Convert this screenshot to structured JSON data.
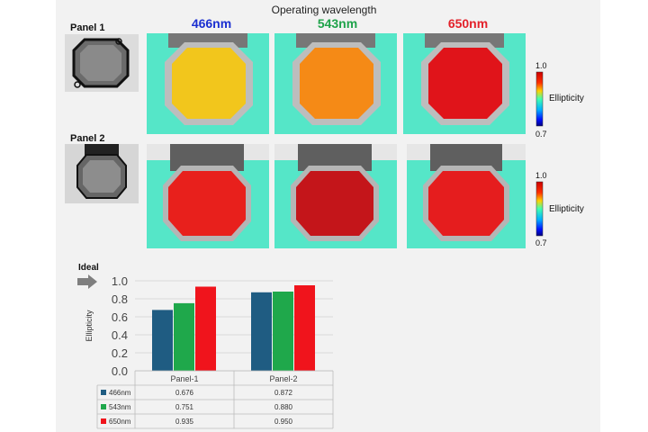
{
  "figure": {
    "title": "Operating wavelength",
    "wavelengths": [
      {
        "label": "466nm",
        "color": "#1a2fd1"
      },
      {
        "label": "543nm",
        "color": "#1fa34a"
      },
      {
        "label": "650nm",
        "color": "#e3212a"
      }
    ],
    "panels": [
      {
        "label": "Panel 1",
        "tile_colors": [
          "#f2c61c",
          "#f58a16",
          "#e0141a"
        ]
      },
      {
        "label": "Panel 2",
        "tile_colors": [
          "#e8201c",
          "#c4151a",
          "#e51d1e"
        ]
      }
    ],
    "background_color": "#55e6c8",
    "colorbar": {
      "max_label": "1.0",
      "min_label": "0.7",
      "name": "Ellipticity"
    },
    "ideal_label": "Ideal"
  },
  "chart_data": {
    "type": "bar",
    "categories": [
      "Panel-1",
      "Panel-2"
    ],
    "series": [
      {
        "name": "466nm",
        "values": [
          0.676,
          0.872
        ],
        "value_labels": [
          "0.676",
          "0.872"
        ],
        "color": "#1f5c82"
      },
      {
        "name": "543nm",
        "values": [
          0.751,
          0.88
        ],
        "value_labels": [
          "0.751",
          "0.880"
        ],
        "color": "#1fa84b"
      },
      {
        "name": "650nm",
        "values": [
          0.935,
          0.95
        ],
        "value_labels": [
          "0.935",
          "0.950"
        ],
        "color": "#f0141c"
      }
    ],
    "ylabel": "Ellipticity",
    "ylim": [
      0,
      1.0
    ],
    "yticks": [
      "0.0",
      "0.2",
      "0.4",
      "0.6",
      "0.8",
      "1.0"
    ],
    "grid": true,
    "legend": "data-table"
  }
}
